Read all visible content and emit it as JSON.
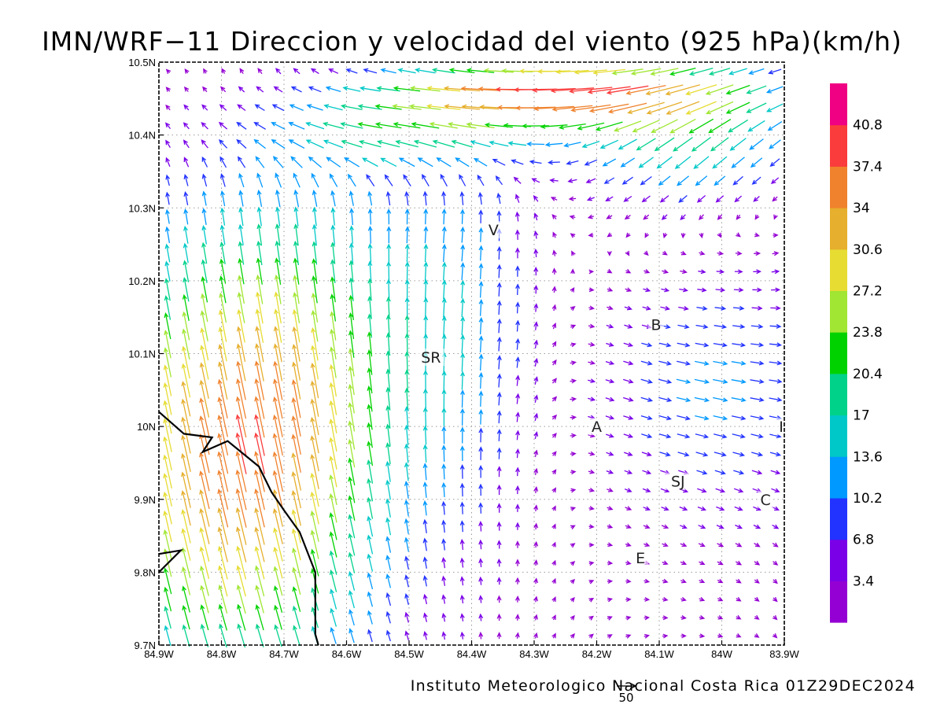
{
  "title": "IMN/WRF−11 Direccion y velocidad del viento (925 hPa)(km/h)",
  "credit": "Instituto Meteorologico Nacional Costa Rica 01Z29DEC2024",
  "reference_vector": {
    "label": "50",
    "value": 50
  },
  "axes": {
    "x_ticks": [
      "84.9W",
      "84.8W",
      "84.7W",
      "84.6W",
      "84.5W",
      "84.4W",
      "84.3W",
      "84.2W",
      "84.1W",
      "84W",
      "83.9W"
    ],
    "y_ticks": [
      "9.7N",
      "9.8N",
      "9.9N",
      "10N",
      "10.1N",
      "10.2N",
      "10.3N",
      "10.4N",
      "10.5N"
    ],
    "lon_range": [
      -84.9,
      -83.9
    ],
    "lat_range": [
      9.7,
      10.5
    ],
    "grid": "dotted"
  },
  "colorbar": {
    "labels": [
      "40.8",
      "37.4",
      "34",
      "30.6",
      "27.2",
      "23.8",
      "20.4",
      "17",
      "13.6",
      "10.2",
      "6.8",
      "3.4"
    ],
    "colors": [
      "#9400d3",
      "#7a00e8",
      "#2233ff",
      "#0099ff",
      "#00c8c8",
      "#00d28a",
      "#00d200",
      "#a0e632",
      "#e6dc32",
      "#e6af2d",
      "#f0822d",
      "#fa3c3c",
      "#f00082"
    ]
  },
  "places": [
    {
      "label": "V",
      "lon": -84.365,
      "lat": 10.27
    },
    {
      "label": "B",
      "lon": -84.105,
      "lat": 10.14
    },
    {
      "label": "SR",
      "lon": -84.465,
      "lat": 10.095
    },
    {
      "label": "A",
      "lon": -84.2,
      "lat": 10.0
    },
    {
      "label": "I",
      "lon": -83.905,
      "lat": 10.0
    },
    {
      "label": "SJ",
      "lon": -84.07,
      "lat": 9.925
    },
    {
      "label": "C",
      "lon": -83.93,
      "lat": 9.9
    },
    {
      "label": "E",
      "lon": -84.13,
      "lat": 9.82
    }
  ],
  "coastline": [
    [
      -84.9,
      10.02
    ],
    [
      -84.86,
      9.99
    ],
    [
      -84.815,
      9.985
    ],
    [
      -84.83,
      9.965
    ],
    [
      -84.79,
      9.98
    ],
    [
      -84.74,
      9.945
    ],
    [
      -84.72,
      9.91
    ],
    [
      -84.7,
      9.885
    ],
    [
      -84.675,
      9.855
    ],
    [
      -84.65,
      9.8
    ],
    [
      -84.65,
      9.75
    ],
    [
      -84.65,
      9.715
    ],
    [
      -84.645,
      9.7
    ]
  ],
  "coastline2": [
    [
      -84.9,
      9.825
    ],
    [
      -84.865,
      9.83
    ],
    [
      -84.9,
      9.8
    ]
  ]
}
